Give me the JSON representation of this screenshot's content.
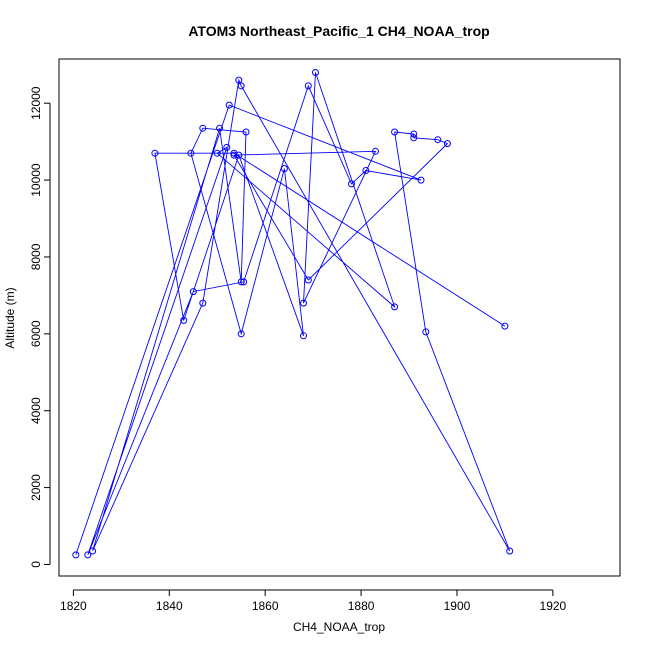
{
  "chart_data": {
    "type": "line",
    "title": "ATOM3 Northeast_Pacific_1 CH4_NOAA_trop",
    "xlabel": "CH4_NOAA_trop",
    "ylabel": "Altitude (m)",
    "xlim": [
      1817,
      1934
    ],
    "ylim": [
      -300,
      13150
    ],
    "xticks": [
      1820,
      1840,
      1860,
      1880,
      1900,
      1920
    ],
    "yticks": [
      0,
      2000,
      4000,
      6000,
      8000,
      10000,
      12000
    ],
    "grid": false,
    "marker": "open-circle",
    "series": [
      {
        "color": "#0000ff",
        "x": [
          1820.5,
          1852.5,
          1892.5,
          1881.0,
          1878.0,
          1869.0,
          1855.5,
          1845.0,
          1823.0,
          1852.0,
          1850.0,
          1887.0,
          1870.5,
          1868.0,
          1883.0,
          1853.5,
          1869.0,
          1898.0,
          1896.0,
          1891.0,
          1891.0,
          1887.0,
          1893.5,
          1911.0,
          1855.0,
          1854.5,
          1847.0,
          1824.0,
          1850.5,
          1855.0,
          1856.0,
          1847.0,
          1844.5,
          1855.0,
          1864.0,
          1868.0,
          1854.5,
          1843.0,
          1837.0,
          1853.5,
          1910.0
        ],
        "y": [
          250,
          11950,
          10000,
          10250,
          9900,
          12450,
          7350,
          7100,
          250,
          10850,
          10700,
          6700,
          12800,
          6800,
          10750,
          10650,
          7400,
          10950,
          11050,
          11100,
          11200,
          11250,
          6050,
          350,
          12450,
          12600,
          6800,
          350,
          11350,
          7350,
          11250,
          11350,
          10700,
          6000,
          10300,
          5950,
          10650,
          6350,
          10700,
          10700,
          6200
        ]
      }
    ]
  }
}
